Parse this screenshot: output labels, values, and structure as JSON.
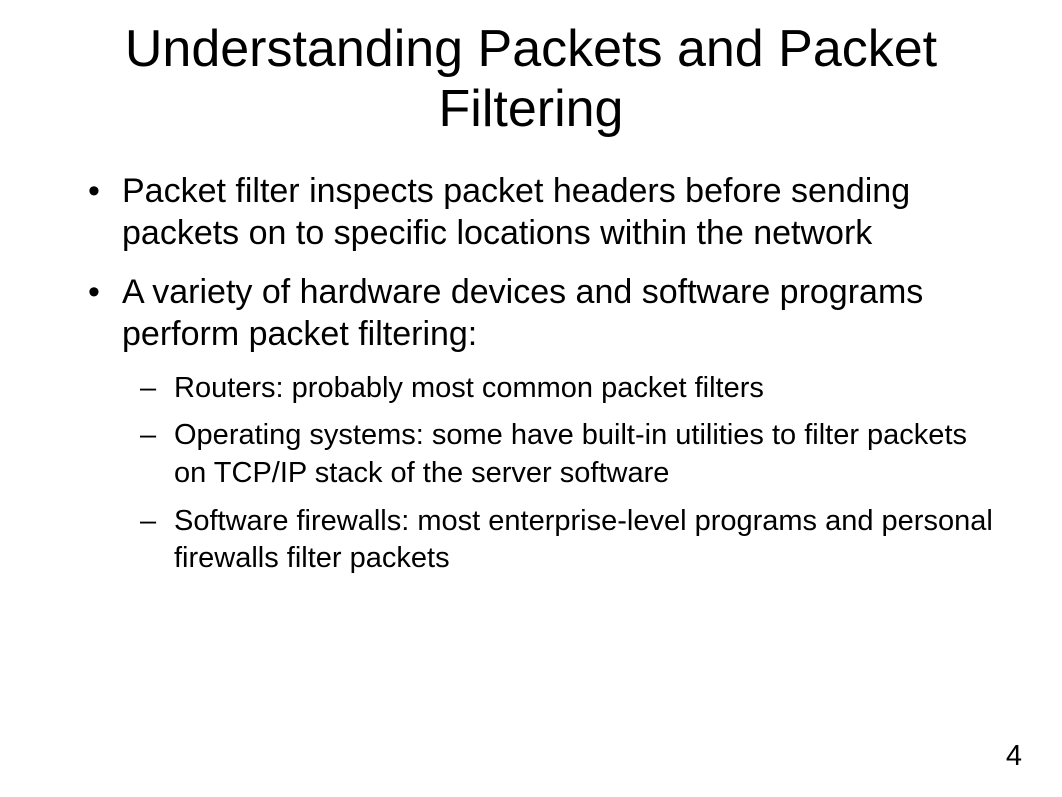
{
  "slide": {
    "title": "Understanding Packets and Packet Filtering",
    "bullets": [
      {
        "text": "Packet filter inspects packet headers before sending packets on to specific locations within the network"
      },
      {
        "text": "A variety of hardware devices and software programs perform packet filtering:",
        "sub": [
          "Routers: probably most common packet filters",
          "Operating systems: some have built-in utilities to filter packets on TCP/IP stack of the server software",
          "Software firewalls: most enterprise-level programs and personal firewalls filter packets"
        ]
      }
    ],
    "page_number": "4"
  },
  "style": {
    "background_color": "#ffffff",
    "text_color": "#000000",
    "title_fontsize": 52,
    "bullet_fontsize": 34,
    "sub_bullet_fontsize": 29,
    "page_num_fontsize": 29,
    "font_family": "Arial, Helvetica, sans-serif"
  }
}
